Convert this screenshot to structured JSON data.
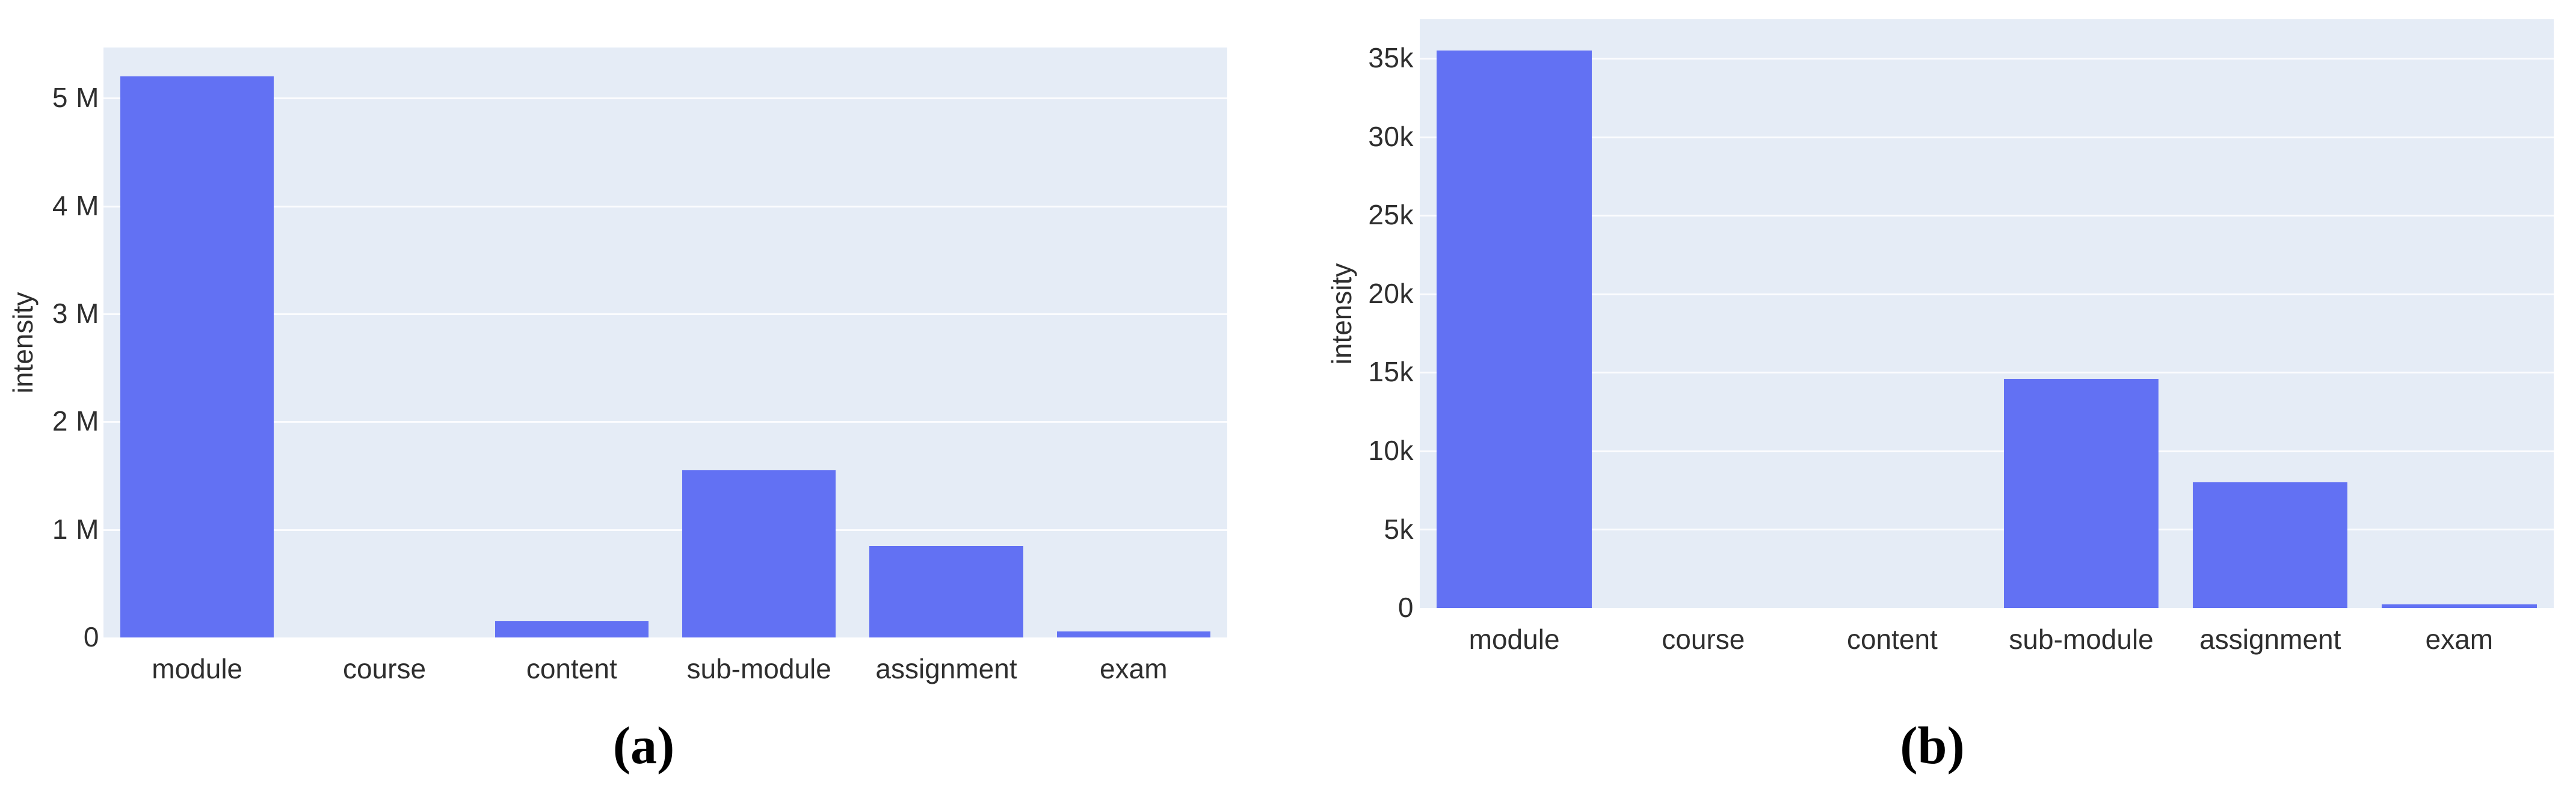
{
  "page": {
    "background": "#ffffff",
    "text_color": "#2e2e2e"
  },
  "figure": {
    "captions": {
      "a": "(a)",
      "b": "(b)"
    }
  },
  "chart_data": [
    {
      "id": "a",
      "type": "bar",
      "title": "",
      "xlabel": "",
      "ylabel": "intensity",
      "caption": "(a)",
      "categories": [
        "module",
        "course",
        "content",
        "sub-module",
        "assignment",
        "exam"
      ],
      "values": [
        5200000,
        0,
        150000,
        1550000,
        850000,
        55000
      ],
      "yticks": [
        {
          "value": 0,
          "label": "0"
        },
        {
          "value": 1000000,
          "label": "1 M"
        },
        {
          "value": 2000000,
          "label": "2 M"
        },
        {
          "value": 3000000,
          "label": "3 M"
        },
        {
          "value": 4000000,
          "label": "4 M"
        },
        {
          "value": 5000000,
          "label": "5 M"
        }
      ],
      "ylim": [
        0,
        5470000
      ],
      "grid": true,
      "legend": false,
      "bar_color": "#6271f3",
      "plot_bg": "#e5ecf6",
      "grid_color": "rgba(255,255,255,0.85)"
    },
    {
      "id": "b",
      "type": "bar",
      "title": "",
      "xlabel": "",
      "ylabel": "intensity",
      "caption": "(b)",
      "categories": [
        "module",
        "course",
        "content",
        "sub-module",
        "assignment",
        "exam"
      ],
      "values": [
        35500,
        0,
        0,
        14600,
        8000,
        250
      ],
      "yticks": [
        {
          "value": 0,
          "label": "0"
        },
        {
          "value": 5000,
          "label": "5k"
        },
        {
          "value": 10000,
          "label": "10k"
        },
        {
          "value": 15000,
          "label": "15k"
        },
        {
          "value": 20000,
          "label": "20k"
        },
        {
          "value": 25000,
          "label": "25k"
        },
        {
          "value": 30000,
          "label": "30k"
        },
        {
          "value": 35000,
          "label": "35k"
        }
      ],
      "ylim": [
        0,
        37500
      ],
      "grid": true,
      "legend": false,
      "bar_color": "#6271f3",
      "plot_bg": "#e5ecf6",
      "grid_color": "rgba(255,255,255,0.85)"
    }
  ]
}
